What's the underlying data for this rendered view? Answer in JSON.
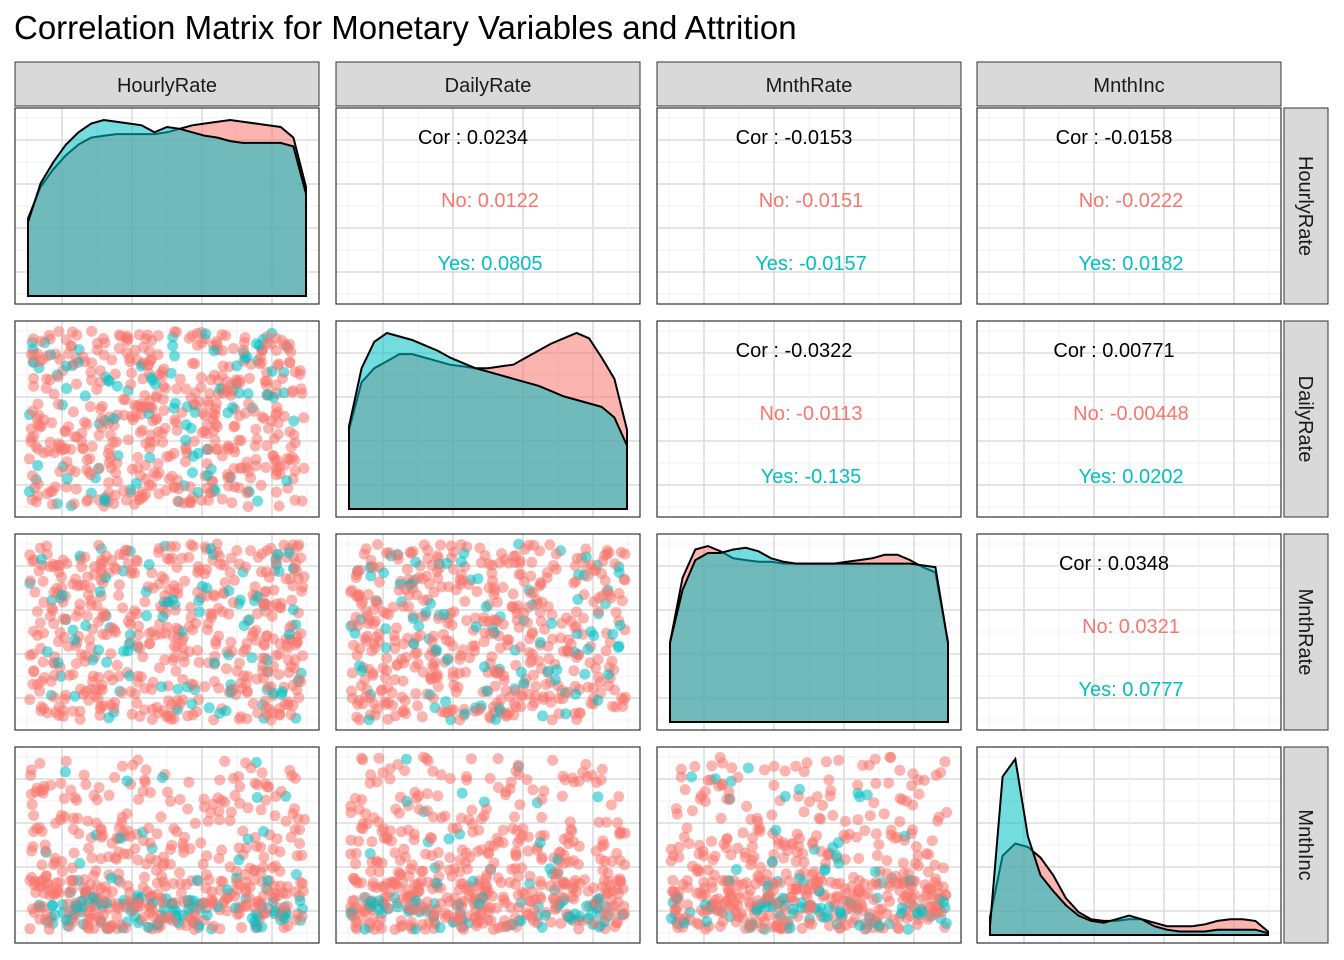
{
  "title": "Correlation Matrix for Monetary Variables and Attrition",
  "colors": {
    "no": "#F8766D",
    "yes": "#00BFC4",
    "total": "#000000",
    "strip_fill": "#D9D9D9",
    "panel_border": "#333333",
    "grid_major": "#DCDCDC",
    "grid_minor": "#F0F0F0",
    "overlap_fill": "#6B9E9F"
  },
  "chart_data": {
    "type": "scatter",
    "variables": [
      "HourlyRate",
      "DailyRate",
      "MnthRate",
      "MnthInc"
    ],
    "groups": [
      "No",
      "Yes"
    ],
    "correlations": [
      {
        "row": 0,
        "col": 1,
        "cor": "Cor : 0.0234",
        "no": "No: 0.0122",
        "yes": "Yes: 0.0805"
      },
      {
        "row": 0,
        "col": 2,
        "cor": "Cor : -0.0153",
        "no": "No: -0.0151",
        "yes": "Yes: -0.0157"
      },
      {
        "row": 0,
        "col": 3,
        "cor": "Cor : -0.0158",
        "no": "No: -0.0222",
        "yes": "Yes: 0.0182"
      },
      {
        "row": 1,
        "col": 2,
        "cor": "Cor : -0.0322",
        "no": "No: -0.0113",
        "yes": "Yes: -0.135"
      },
      {
        "row": 1,
        "col": 3,
        "cor": "Cor : 0.00771",
        "no": "No: -0.00448",
        "yes": "Yes: 0.0202"
      },
      {
        "row": 2,
        "col": 3,
        "cor": "Cor : 0.0348",
        "no": "No: 0.0321",
        "yes": "Yes: 0.0777"
      }
    ],
    "densities": [
      {
        "var": "HourlyRate",
        "no": [
          0.44,
          0.62,
          0.72,
          0.8,
          0.86,
          0.9,
          0.91,
          0.92,
          0.92,
          0.92,
          0.92,
          0.93,
          0.95,
          0.97,
          0.98,
          0.99,
          1.0,
          0.99,
          0.98,
          0.97,
          0.96,
          0.9,
          0.62
        ],
        "yes": [
          0.42,
          0.64,
          0.76,
          0.86,
          0.93,
          0.98,
          1.0,
          0.99,
          0.98,
          0.97,
          0.93,
          0.96,
          0.95,
          0.93,
          0.91,
          0.9,
          0.88,
          0.87,
          0.87,
          0.87,
          0.87,
          0.85,
          0.58
        ]
      },
      {
        "var": "DailyRate",
        "no": [
          0.45,
          0.72,
          0.8,
          0.84,
          0.88,
          0.88,
          0.86,
          0.84,
          0.82,
          0.81,
          0.8,
          0.8,
          0.81,
          0.82,
          0.86,
          0.9,
          0.94,
          0.97,
          1.0,
          0.97,
          0.86,
          0.74,
          0.45
        ],
        "yes": [
          0.47,
          0.8,
          0.95,
          1.0,
          0.98,
          0.96,
          0.93,
          0.9,
          0.86,
          0.83,
          0.8,
          0.78,
          0.76,
          0.74,
          0.72,
          0.7,
          0.67,
          0.64,
          0.62,
          0.6,
          0.58,
          0.52,
          0.36
        ]
      },
      {
        "var": "MnthRate",
        "no": [
          0.45,
          0.82,
          0.98,
          1.0,
          0.97,
          0.93,
          0.92,
          0.91,
          0.91,
          0.9,
          0.9,
          0.9,
          0.9,
          0.9,
          0.91,
          0.92,
          0.93,
          0.95,
          0.95,
          0.92,
          0.88,
          0.85,
          0.45
        ],
        "yes": [
          0.45,
          0.75,
          0.92,
          0.96,
          0.96,
          0.98,
          0.99,
          0.97,
          0.93,
          0.91,
          0.9,
          0.9,
          0.9,
          0.9,
          0.9,
          0.9,
          0.9,
          0.9,
          0.9,
          0.9,
          0.89,
          0.88,
          0.45
        ]
      },
      {
        "var": "MnthInc",
        "no": [
          0.1,
          0.45,
          0.52,
          0.5,
          0.44,
          0.34,
          0.21,
          0.13,
          0.09,
          0.08,
          0.08,
          0.09,
          0.09,
          0.07,
          0.05,
          0.05,
          0.05,
          0.06,
          0.08,
          0.09,
          0.09,
          0.08,
          0.02
        ],
        "yes": [
          0.05,
          0.9,
          1.0,
          0.56,
          0.34,
          0.25,
          0.17,
          0.11,
          0.08,
          0.07,
          0.09,
          0.11,
          0.09,
          0.05,
          0.03,
          0.02,
          0.02,
          0.02,
          0.03,
          0.03,
          0.03,
          0.03,
          0.01
        ]
      }
    ],
    "grid": true,
    "legend": "none"
  }
}
